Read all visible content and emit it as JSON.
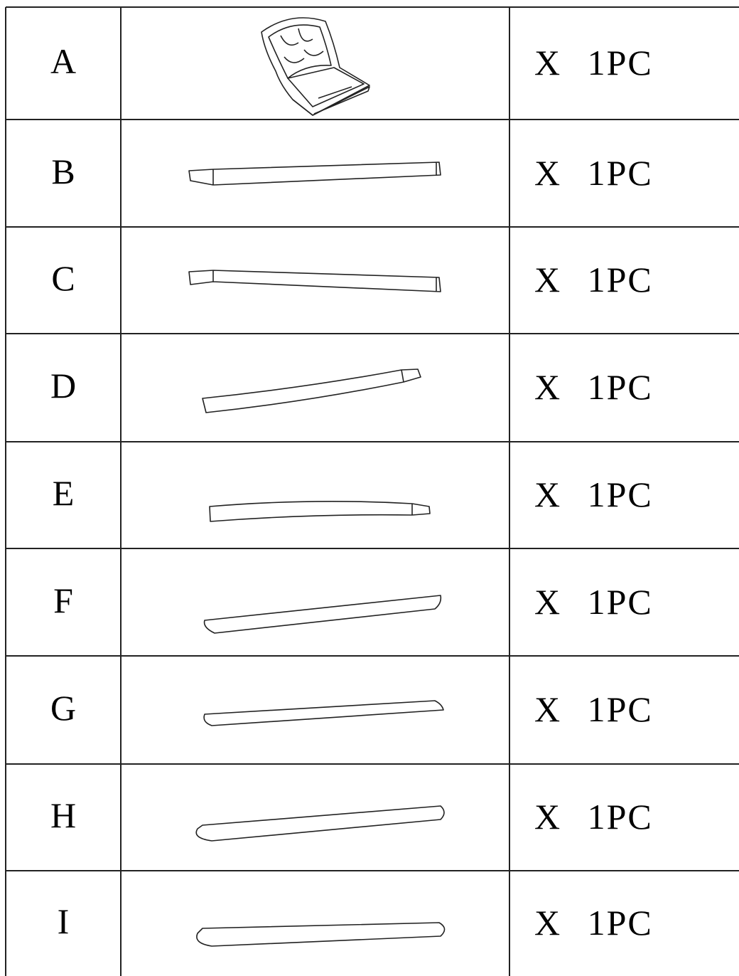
{
  "parts": [
    {
      "label": "A",
      "quantity": "X 1PC"
    },
    {
      "label": "B",
      "quantity": "X 1PC"
    },
    {
      "label": "C",
      "quantity": "X 1PC"
    },
    {
      "label": "D",
      "quantity": "X 1PC"
    },
    {
      "label": "E",
      "quantity": "X 1PC"
    },
    {
      "label": "F",
      "quantity": "X 1PC"
    },
    {
      "label": "G",
      "quantity": "X 1PC"
    },
    {
      "label": "H",
      "quantity": "X 1PC"
    },
    {
      "label": "I",
      "quantity": "X 1PC"
    }
  ]
}
